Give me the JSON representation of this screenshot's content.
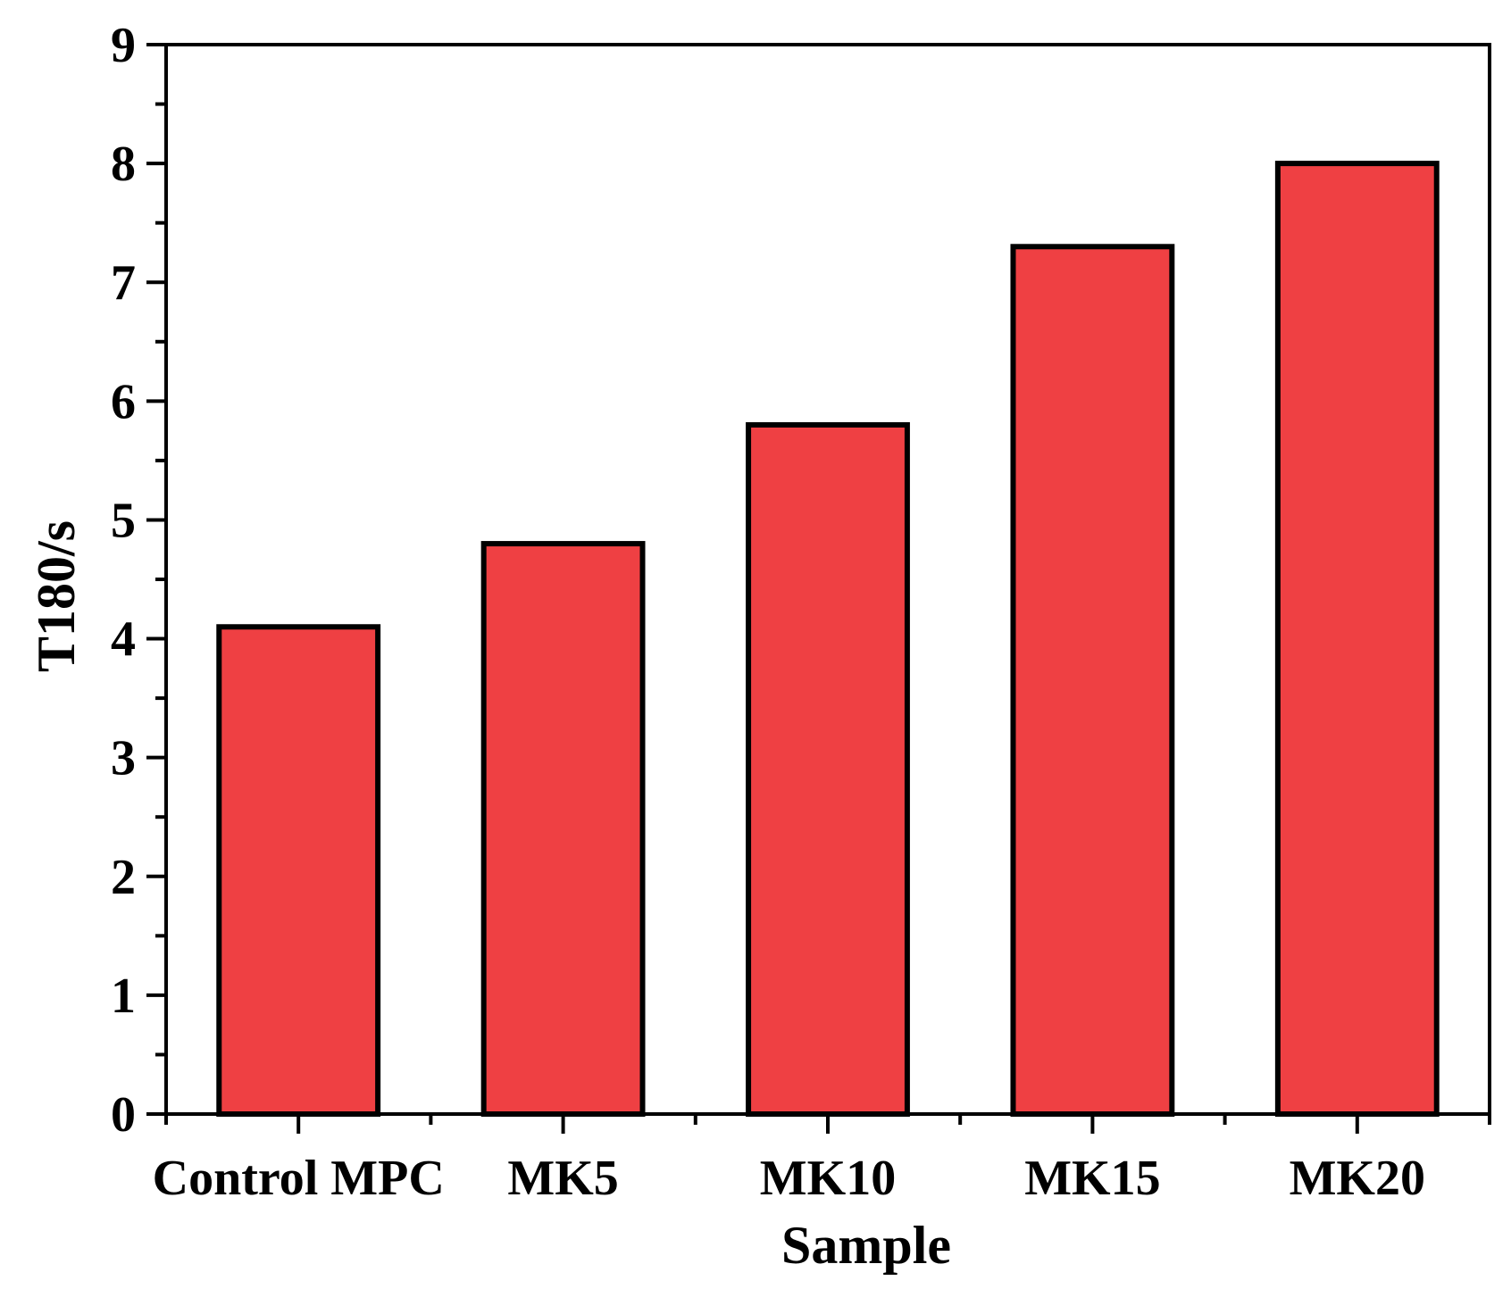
{
  "chart_data": {
    "type": "bar",
    "categories": [
      "Control MPC",
      "MK5",
      "MK10",
      "MK15",
      "MK20"
    ],
    "values": [
      4.1,
      4.8,
      5.8,
      7.3,
      8.0
    ],
    "xlabel": "Sample",
    "ylabel": "T180/s",
    "ylim": [
      0,
      9
    ],
    "yticks": [
      "0",
      "1",
      "2",
      "3",
      "4",
      "5",
      "6",
      "7",
      "8",
      "9"
    ],
    "grid": false,
    "legend": "none",
    "colors": {
      "bar_fill": "#ef4043",
      "bar_edge": "#000000",
      "axis": "#000000"
    }
  }
}
